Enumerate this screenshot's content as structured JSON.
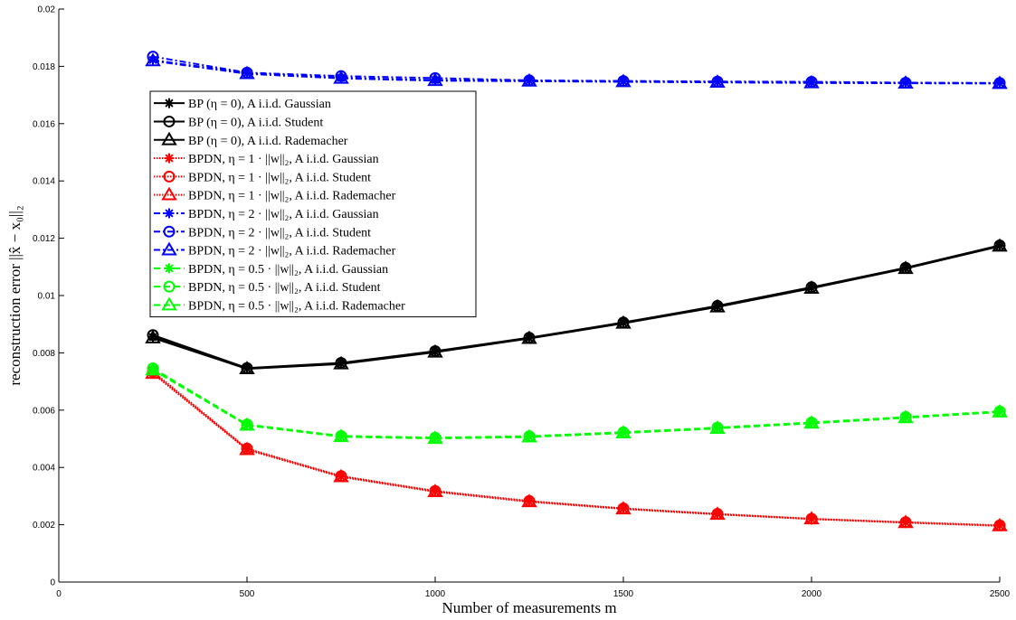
{
  "chart_data": {
    "type": "line",
    "title": "",
    "xlabel": "Number of measurements m",
    "ylabel": "reconstruction error ||x̂ − x₀||₂",
    "xlim": [
      0,
      2500
    ],
    "ylim": [
      0,
      0.02
    ],
    "x_ticks": [
      0,
      500,
      1000,
      1500,
      2000,
      2500
    ],
    "y_ticks": [
      0,
      0.002,
      0.004,
      0.006,
      0.008,
      0.01,
      0.012,
      0.014,
      0.016,
      0.018,
      0.02
    ],
    "x_tick_labels": [
      "0",
      "500",
      "1000",
      "1500",
      "2000",
      "2500"
    ],
    "y_tick_labels": [
      "0",
      "0.002",
      "0.004",
      "0.006",
      "0.008",
      "0.01",
      "0.012",
      "0.014",
      "0.016",
      "0.018",
      "0.02"
    ],
    "grid": false,
    "legend_position": "upper-left",
    "x": [
      250,
      500,
      750,
      1000,
      1250,
      1500,
      1750,
      2000,
      2250,
      2500
    ],
    "series": [
      {
        "name": "BP (η = 0), A i.i.d. Gaussian",
        "color": "#000000",
        "dash": "solid",
        "marker": "star",
        "values": [
          0.00855,
          0.00745,
          0.00762,
          0.00803,
          0.00851,
          0.00904,
          0.00961,
          0.01026,
          0.01095,
          0.01173
        ]
      },
      {
        "name": "BP (η = 0), A i.i.d. Student",
        "color": "#000000",
        "dash": "solid",
        "marker": "circle",
        "values": [
          0.00862,
          0.00747,
          0.00765,
          0.00806,
          0.00853,
          0.00906,
          0.00964,
          0.01029,
          0.01097,
          0.01175
        ]
      },
      {
        "name": "BP (η = 0), A i.i.d. Rademacher",
        "color": "#000000",
        "dash": "solid",
        "marker": "triangle",
        "values": [
          0.00852,
          0.00744,
          0.00761,
          0.00802,
          0.0085,
          0.00903,
          0.0096,
          0.01025,
          0.01094,
          0.01172
        ]
      },
      {
        "name": "BPDN, η = 1 · ||w||₂, A i.i.d. Gaussian",
        "color": "#ff0000",
        "dash": "dotted",
        "marker": "star",
        "values": [
          0.0073,
          0.00463,
          0.00368,
          0.00316,
          0.00281,
          0.00256,
          0.00237,
          0.0022,
          0.00208,
          0.00197
        ]
      },
      {
        "name": "BPDN, η = 1 · ||w||₂, A i.i.d. Student",
        "color": "#ff0000",
        "dash": "dotted",
        "marker": "circle",
        "values": [
          0.00735,
          0.00466,
          0.0037,
          0.00318,
          0.00283,
          0.00257,
          0.00238,
          0.00221,
          0.00209,
          0.00198
        ]
      },
      {
        "name": "BPDN, η = 1 · ||w||₂, A i.i.d. Rademacher",
        "color": "#ff0000",
        "dash": "dotted",
        "marker": "triangle",
        "values": [
          0.00728,
          0.00462,
          0.00367,
          0.00315,
          0.0028,
          0.00255,
          0.00236,
          0.0022,
          0.00207,
          0.00196
        ]
      },
      {
        "name": "BPDN, η = 2 · ||w||₂, A i.i.d. Gaussian",
        "color": "#0000ff",
        "dash": "dashdot",
        "marker": "star",
        "values": [
          0.01822,
          0.01776,
          0.0176,
          0.01752,
          0.01749,
          0.01747,
          0.01745,
          0.01743,
          0.01742,
          0.01741
        ]
      },
      {
        "name": "BPDN, η = 2 · ||w||₂, A i.i.d. Student",
        "color": "#0000ff",
        "dash": "dashdot",
        "marker": "circle",
        "values": [
          0.01834,
          0.01778,
          0.01766,
          0.01759,
          0.01751,
          0.01749,
          0.01747,
          0.01746,
          0.01743,
          0.01742
        ]
      },
      {
        "name": "BPDN, η = 2 · ||w||₂, A i.i.d. Rademacher",
        "color": "#0000ff",
        "dash": "dashdot",
        "marker": "triangle",
        "values": [
          0.01819,
          0.01774,
          0.01758,
          0.0175,
          0.01748,
          0.01746,
          0.01744,
          0.01742,
          0.01741,
          0.0174
        ]
      },
      {
        "name": "BPDN, η = 0.5 · ||w||₂, A i.i.d. Gaussian",
        "color": "#00ff00",
        "dash": "dashed",
        "marker": "star",
        "values": [
          0.00742,
          0.00548,
          0.00508,
          0.00502,
          0.00507,
          0.00521,
          0.00537,
          0.00555,
          0.00574,
          0.00594
        ]
      },
      {
        "name": "BPDN, η = 0.5 · ||w||₂, A i.i.d. Student",
        "color": "#00ff00",
        "dash": "dashed",
        "marker": "circle",
        "values": [
          0.00746,
          0.0055,
          0.0051,
          0.00504,
          0.00509,
          0.00523,
          0.00539,
          0.00557,
          0.00576,
          0.00596
        ]
      },
      {
        "name": "BPDN, η = 0.5 · ||w||₂, A i.i.d. Rademacher",
        "color": "#00ff00",
        "dash": "dashed",
        "marker": "triangle",
        "values": [
          0.0074,
          0.00547,
          0.00507,
          0.00501,
          0.00506,
          0.0052,
          0.00536,
          0.00554,
          0.00573,
          0.00593
        ]
      }
    ]
  }
}
